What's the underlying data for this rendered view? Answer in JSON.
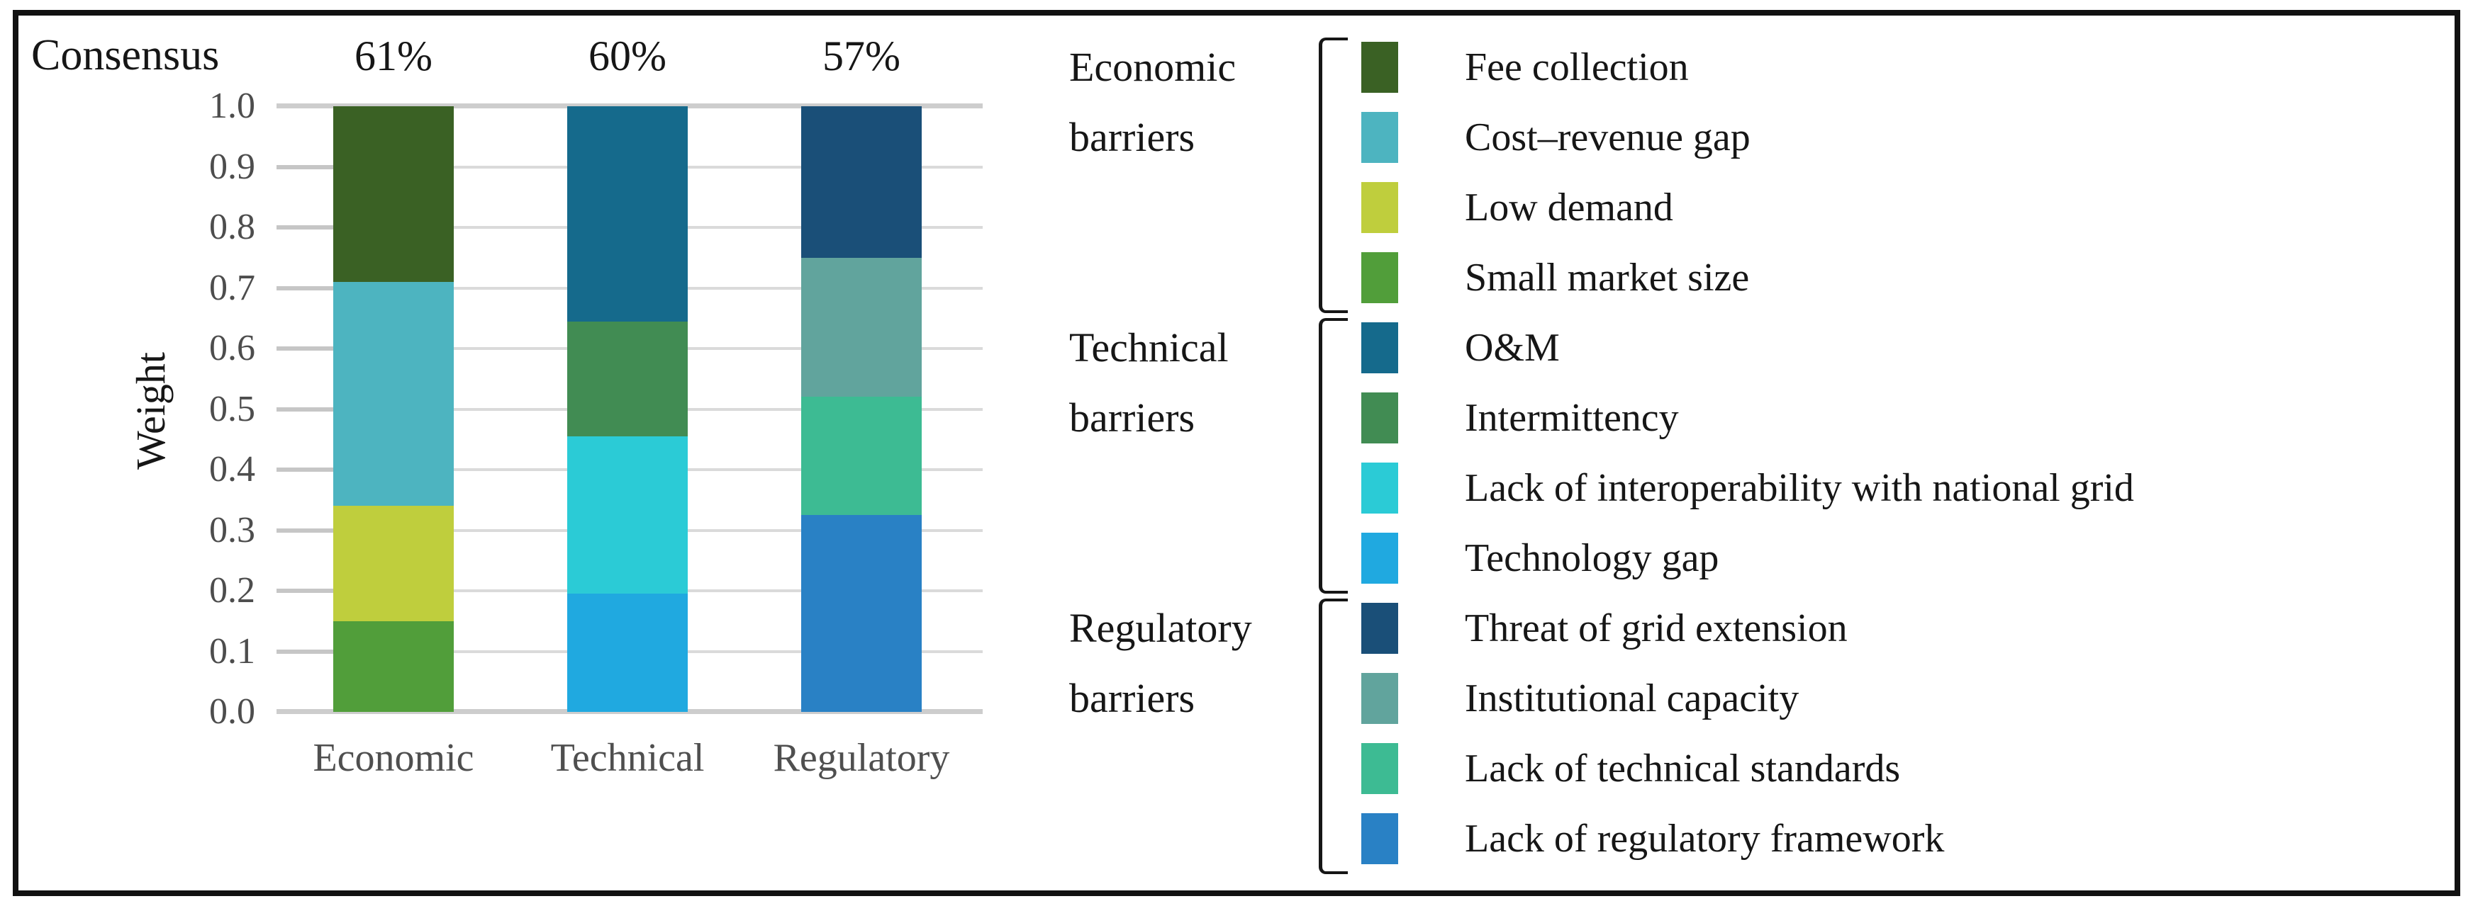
{
  "figure": {
    "consensus_label": "Consensus",
    "ylabel": "Weight"
  },
  "palette": {
    "Fee collection": "#3a6124",
    "Cost–revenue gap": "#4db4c0",
    "Low demand": "#bfce3d",
    "Small market size": "#519e3a",
    "O&M": "#156a8c",
    "Intermittency": "#418c53",
    "Lack of interoperability with national grid": "#2bcbd6",
    "Technology gap": "#20a9e0",
    "Threat of grid extension": "#1a4f78",
    "Institutional capacity": "#61a49d",
    "Lack of technical standards": "#3dbb93",
    "Lack of regulatory framework": "#2981c5"
  },
  "chart_data": {
    "type": "bar",
    "stacked": true,
    "title": "Consensus",
    "ylabel": "Weight",
    "ylim": [
      0,
      1
    ],
    "grid": true,
    "legend_position": "right",
    "yticks": [
      "0.0",
      "0.1",
      "0.2",
      "0.3",
      "0.4",
      "0.5",
      "0.6",
      "0.7",
      "0.8",
      "0.9",
      "1.0"
    ],
    "categories": [
      "Economic",
      "Technical",
      "Regulatory"
    ],
    "consensus": [
      "61%",
      "60%",
      "57%"
    ],
    "stacks": {
      "Economic": [
        [
          "Small market size",
          0.15
        ],
        [
          "Low demand",
          0.19
        ],
        [
          "Cost–revenue gap",
          0.37
        ],
        [
          "Fee collection",
          0.29
        ]
      ],
      "Technical": [
        [
          "Technology gap",
          0.195
        ],
        [
          "Lack of interoperability with national grid",
          0.26
        ],
        [
          "Intermittency",
          0.19
        ],
        [
          "O&M",
          0.355
        ]
      ],
      "Regulatory": [
        [
          "Lack of regulatory framework",
          0.325
        ],
        [
          "Lack of technical standards",
          0.195
        ],
        [
          "Institutional capacity",
          0.23
        ],
        [
          "Threat of grid extension",
          0.25
        ]
      ]
    }
  },
  "legend": {
    "groups": [
      {
        "label_lines": [
          "Economic",
          "barriers"
        ],
        "items": [
          "Fee collection",
          "Cost–revenue gap",
          "Low demand",
          "Small market size"
        ]
      },
      {
        "label_lines": [
          "Technical",
          "barriers"
        ],
        "items": [
          "O&M",
          "Intermittency",
          "Lack of interoperability with national grid",
          "Technology gap"
        ]
      },
      {
        "label_lines": [
          "Regulatory",
          "barriers"
        ],
        "items": [
          "Threat of grid extension",
          "Institutional capacity",
          "Lack of technical standards",
          "Lack of regulatory framework"
        ]
      }
    ]
  }
}
